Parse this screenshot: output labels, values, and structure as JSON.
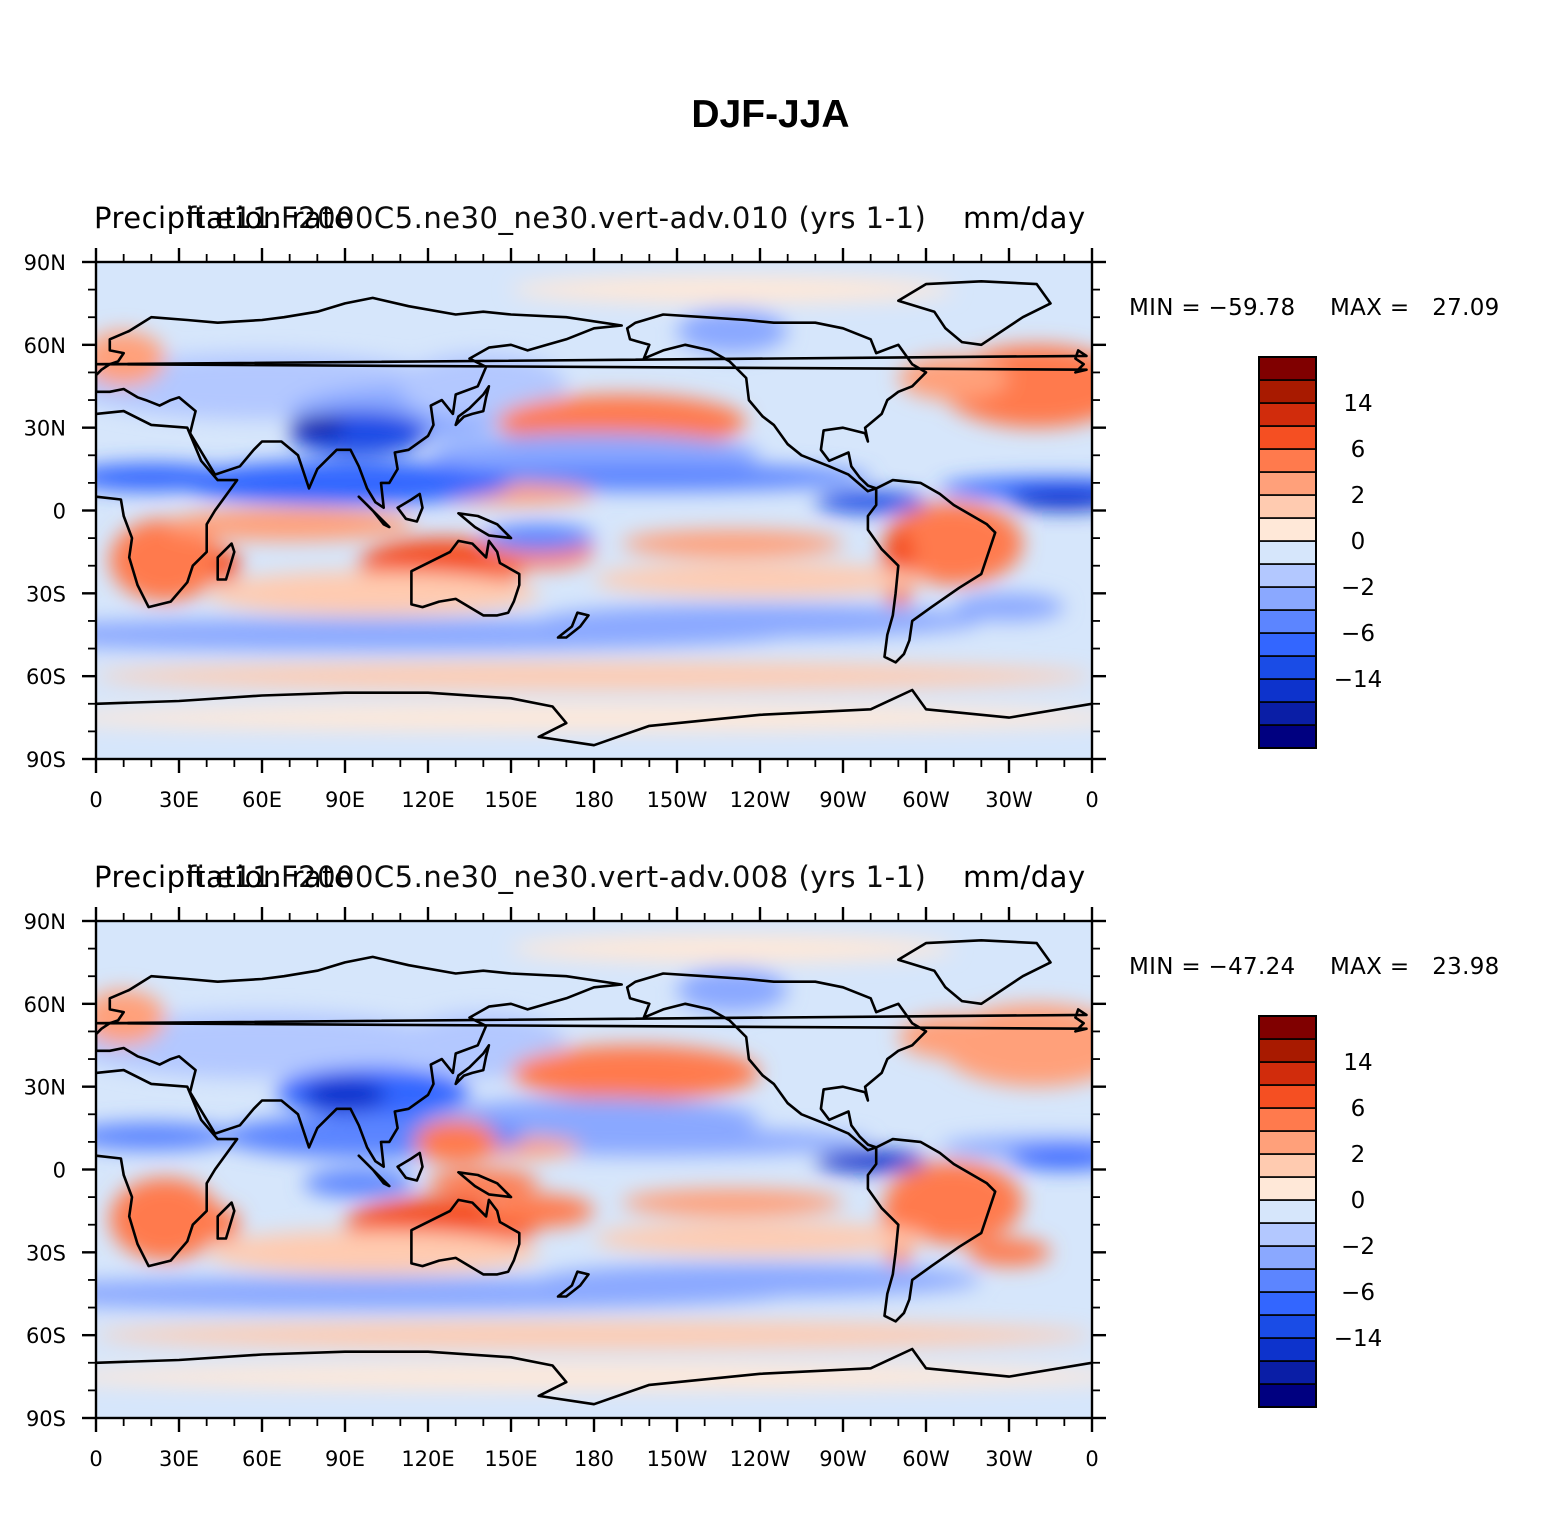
{
  "title": "DJF-JJA",
  "colors": {
    "levels": [
      "#000080",
      "#0a1ea6",
      "#0d33cc",
      "#1a4ce6",
      "#3366ff",
      "#5c85ff",
      "#8aa8ff",
      "#b3c8ff",
      "#d6e6fb",
      "#ffe8d8",
      "#ffcbb0",
      "#ffa07a",
      "#ff7a4d",
      "#f54f22",
      "#d12c0c",
      "#a81a00",
      "#800000"
    ]
  },
  "colorbar": {
    "labels": [
      "14",
      "6",
      "2",
      "0",
      "−2",
      "−6",
      "−14"
    ]
  },
  "axes": {
    "y_ticks": [
      "90N",
      "60N",
      "30N",
      "0",
      "30S",
      "60S",
      "90S"
    ],
    "x_ticks": [
      "0",
      "30E",
      "60E",
      "90E",
      "120E",
      "150E",
      "180",
      "150W",
      "120W",
      "90W",
      "60W",
      "30W",
      "0"
    ]
  },
  "panels": [
    {
      "left_label": "Precipitation rate",
      "center_label": "fi.e11.F2000C5.ne30_ne30.vert-adv.010 (yrs 1-1)",
      "right_label": "mm/day",
      "min_text": "MIN = −59.78",
      "max_text": "MAX =   27.09"
    },
    {
      "left_label": "Precipitation rate",
      "center_label": "fi.e11.F2000C5.ne30_ne30.vert-adv.008 (yrs 1-1)",
      "right_label": "mm/day",
      "min_text": "MIN = −47.24",
      "max_text": "MAX =   23.98"
    }
  ]
}
